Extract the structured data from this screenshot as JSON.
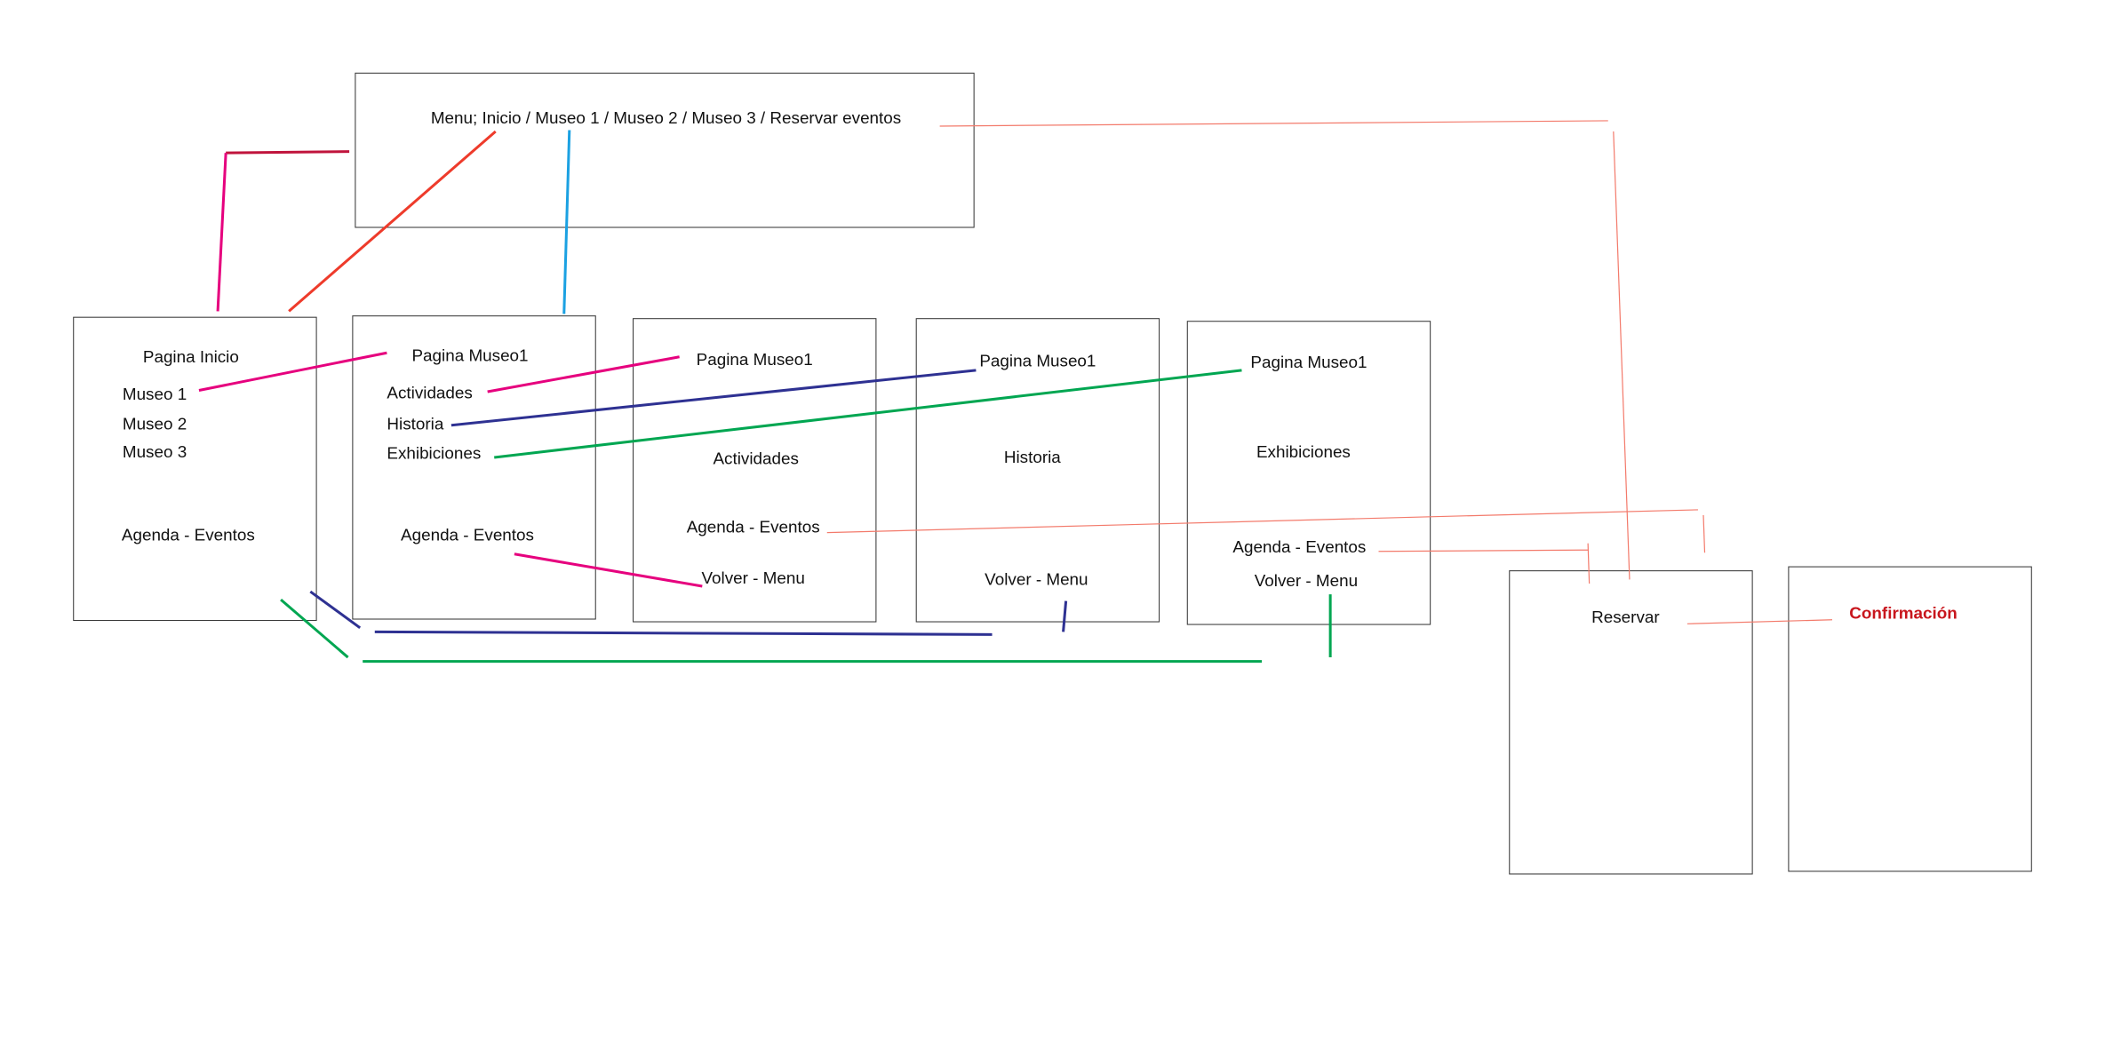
{
  "menu": {
    "text": "Menu; Inicio / Museo 1 / Museo 2 / Museo 3 / Reservar eventos"
  },
  "inicio": {
    "title": "Pagina Inicio",
    "items": [
      "Museo 1",
      "Museo 2",
      "Museo 3"
    ],
    "agenda": "Agenda - Eventos"
  },
  "museo1": {
    "title": "Pagina Museo1",
    "items": [
      "Actividades",
      "Historia",
      "Exhibiciones"
    ],
    "agenda": "Agenda - Eventos"
  },
  "actividades": {
    "title": "Pagina Museo1",
    "section": "Actividades",
    "agenda": "Agenda - Eventos",
    "back": "Volver - Menu"
  },
  "historia": {
    "title": "Pagina Museo1",
    "section": "Historia",
    "back": "Volver - Menu"
  },
  "exhibiciones": {
    "title": "Pagina Museo1",
    "section": "Exhibiciones",
    "agenda": "Agenda - Eventos",
    "back": "Volver - Menu"
  },
  "reservar": {
    "title": "Reservar"
  },
  "confirmacion": {
    "title": "Confirmación"
  },
  "colors": {
    "confirmation_text": "#c8161d",
    "link_pink": "#e6007e",
    "link_navy": "#2e3192",
    "link_green": "#00a651",
    "link_cyan": "#1ba1e2",
    "link_red": "#ee3b2b",
    "link_salmon": "#f37a6b"
  }
}
